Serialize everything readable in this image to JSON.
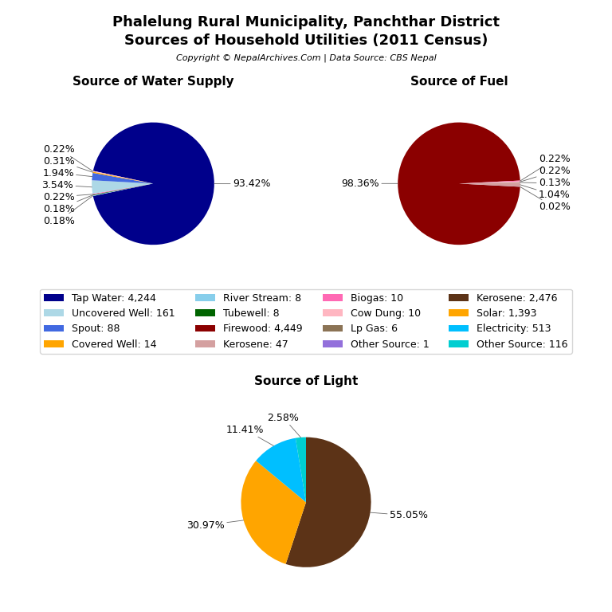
{
  "title": "Phalelung Rural Municipality, Panchthar District",
  "subtitle": "Sources of Household Utilities (2011 Census)",
  "annotations": [
    "Copyright © NepalArchives.Com | Data Source: CBS Nepal"
  ],
  "legend": "center",
  "legend_entries": [
    {
      "name": "Tap Water: 4,244",
      "color": "#00008B"
    },
    {
      "name": "Uncovered Well: 161",
      "color": "#add8e6"
    },
    {
      "name": "Spout: 88",
      "color": "#4169e1"
    },
    {
      "name": "Covered Well: 14",
      "color": "#FFA500"
    },
    {
      "name": "River Stream: 8",
      "color": "#87ceeb"
    },
    {
      "name": "Tubewell: 8",
      "color": "#006400"
    },
    {
      "name": "Firewood: 4,449",
      "color": "#8B0000"
    },
    {
      "name": "Kerosene: 47",
      "color": "#d4a0a0"
    },
    {
      "name": "Biogas: 10",
      "color": "#ff69b4"
    },
    {
      "name": "Cow Dung: 10",
      "color": "#ffb6c1"
    },
    {
      "name": "Lp Gas: 6",
      "color": "#8B7355"
    },
    {
      "name": "Other Source: 1",
      "color": "#9370DB"
    },
    {
      "name": "Kerosene: 2,476",
      "color": "#5C3317"
    },
    {
      "name": "Solar: 1,393",
      "color": "#FFA500"
    },
    {
      "name": "Electricity: 513",
      "color": "#00BFFF"
    },
    {
      "name": "Other Source: 116",
      "color": "#00CED1"
    }
  ],
  "chart_data": [
    {
      "type": "pie",
      "title": "Source of Water Supply",
      "values": [
        93.42,
        0.18,
        0.18,
        0.22,
        3.54,
        1.94,
        0.31,
        0.22
      ],
      "value_labels": [
        "93.42%",
        "0.18%",
        "0.18%",
        "0.22%",
        "3.54%",
        "1.94%",
        "0.31%",
        "0.22%"
      ],
      "colors": [
        "#00008B",
        "#87ceeb",
        "#006400",
        "#ff69b4",
        "#add8e6",
        "#4169e1",
        "#FFA500",
        "#ffb6c1"
      ],
      "data_labels": true
    },
    {
      "type": "pie",
      "title": "Source of Fuel",
      "values": [
        98.36,
        0.22,
        0.22,
        0.13,
        1.04,
        0.02
      ],
      "value_labels": [
        "98.36%",
        "0.22%",
        "0.22%",
        "0.13%",
        "1.04%",
        "0.02%"
      ],
      "colors": [
        "#8B0000",
        "#ff69b4",
        "#ffb6c1",
        "#8B7355",
        "#d4a0a0",
        "#9370DB"
      ],
      "data_labels": true
    },
    {
      "type": "pie",
      "title": "Source of Light",
      "values": [
        55.05,
        30.97,
        11.41,
        2.58
      ],
      "value_labels": [
        "55.05%",
        "30.97%",
        "11.41%",
        "2.58%"
      ],
      "colors": [
        "#5C3317",
        "#FFA500",
        "#00BFFF",
        "#00CED1"
      ],
      "data_labels": true
    }
  ]
}
